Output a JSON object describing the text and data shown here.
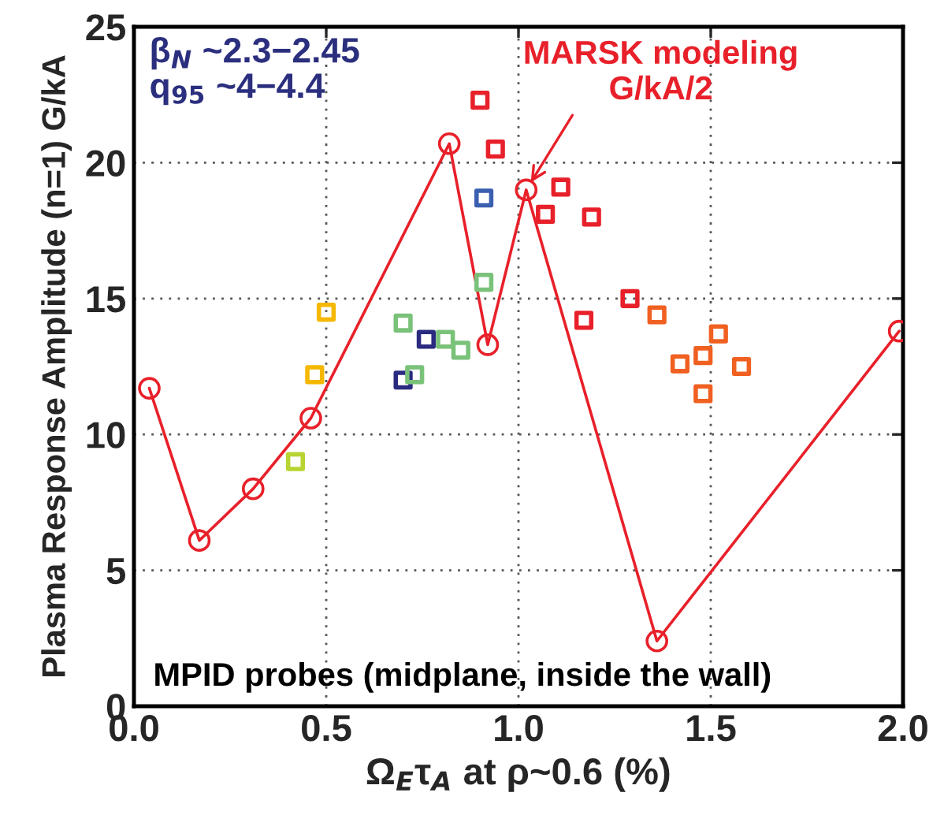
{
  "chart_data": {
    "type": "scatter",
    "xlabel": "Ω$_{E}$τ$_{A}$ at ρ~0.6 (%)",
    "ylabel": "Plasma Response Amplitude (n=1) G/kA",
    "xlim": [
      0,
      2
    ],
    "ylim": [
      0,
      25
    ],
    "xticks": [
      {
        "value": 0,
        "label": "0.0"
      },
      {
        "value": 0.5,
        "label": "0.5"
      },
      {
        "value": 1,
        "label": "1.0"
      },
      {
        "value": 1.5,
        "label": "1.5"
      },
      {
        "value": 2,
        "label": "2.0"
      }
    ],
    "yticks": [
      0,
      5,
      10,
      15,
      20,
      25
    ],
    "grid": true,
    "series": [
      {
        "type": "line",
        "marker": "circle",
        "line_style": "solid",
        "color": "#e8202a",
        "x": [
          0.04,
          0.17,
          0.31,
          0.46,
          0.82,
          0.92,
          1.02,
          1.36,
          1.99
        ],
        "values": [
          11.7,
          6.1,
          8.0,
          10.6,
          20.7,
          13.3,
          19.0,
          2.4,
          13.8
        ]
      },
      {
        "marker": "square",
        "x": [
          0.9,
          0.94,
          0.91,
          0.91,
          0.5,
          0.47,
          0.42,
          0.7,
          0.76,
          0.81,
          0.85,
          0.7,
          0.73,
          1.11,
          1.07,
          1.19,
          1.29,
          1.17,
          1.36,
          1.52,
          1.48,
          1.42,
          1.58,
          1.48
        ],
        "values": [
          22.3,
          20.5,
          18.7,
          15.6,
          14.5,
          12.2,
          9.0,
          14.1,
          13.5,
          13.5,
          13.1,
          12.0,
          12.2,
          19.1,
          18.1,
          18.0,
          15.0,
          14.2,
          14.4,
          13.7,
          12.9,
          12.6,
          12.5,
          11.5
        ],
        "colors": [
          "#e8202a",
          "#e8202a",
          "#3a5fb0",
          "#7ac27a",
          "#f5b800",
          "#f5b800",
          "#b8d432",
          "#7ac27a",
          "#2a2a80",
          "#7ac27a",
          "#7ac27a",
          "#2a2a80",
          "#7ac27a",
          "#e8202a",
          "#e8202a",
          "#e8202a",
          "#e8202a",
          "#e8202a",
          "#f06020",
          "#f06020",
          "#f06020",
          "#f06020",
          "#f06020",
          "#f06020"
        ]
      }
    ],
    "annotations": [
      "β$_{N}$ ~2.3−2.45\nq$_{95}$ ~4−4.4",
      {
        "text": "MARSK modeling\nG/kA/2",
        "x": 1.02,
        "y": 19.0
      },
      "MPID probes (midplane, inside the wall)"
    ]
  }
}
